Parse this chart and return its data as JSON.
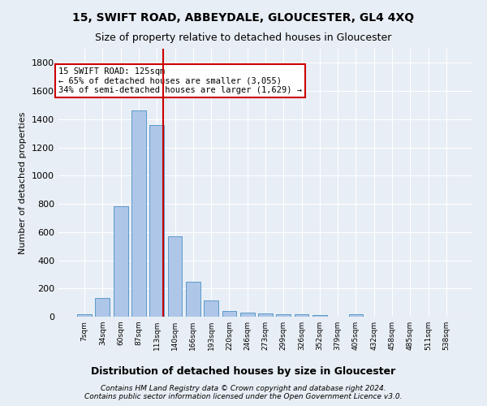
{
  "title": "15, SWIFT ROAD, ABBEYDALE, GLOUCESTER, GL4 4XQ",
  "subtitle": "Size of property relative to detached houses in Gloucester",
  "xlabel": "Distribution of detached houses by size in Gloucester",
  "ylabel": "Number of detached properties",
  "footnote1": "Contains HM Land Registry data © Crown copyright and database right 2024.",
  "footnote2": "Contains public sector information licensed under the Open Government Licence v3.0.",
  "categories": [
    "7sqm",
    "34sqm",
    "60sqm",
    "87sqm",
    "113sqm",
    "140sqm",
    "166sqm",
    "193sqm",
    "220sqm",
    "246sqm",
    "273sqm",
    "299sqm",
    "326sqm",
    "352sqm",
    "379sqm",
    "405sqm",
    "432sqm",
    "458sqm",
    "485sqm",
    "511sqm",
    "538sqm"
  ],
  "values": [
    15,
    130,
    785,
    1460,
    1360,
    570,
    245,
    115,
    40,
    30,
    25,
    18,
    15,
    10,
    0,
    20,
    0,
    0,
    0,
    0,
    0
  ],
  "bar_color": "#aec6e8",
  "bar_edgecolor": "#5a9aca",
  "background_color": "#e8eef5",
  "vline_color": "#cc0000",
  "annotation_text": "15 SWIFT ROAD: 125sqm\n← 65% of detached houses are smaller (3,055)\n34% of semi-detached houses are larger (1,629) →",
  "annotation_box_color": "#ffffff",
  "annotation_box_edgecolor": "#cc0000",
  "ylim": [
    0,
    1900
  ],
  "yticks": [
    0,
    200,
    400,
    600,
    800,
    1000,
    1200,
    1400,
    1600,
    1800
  ],
  "vline_pos": 4.355
}
